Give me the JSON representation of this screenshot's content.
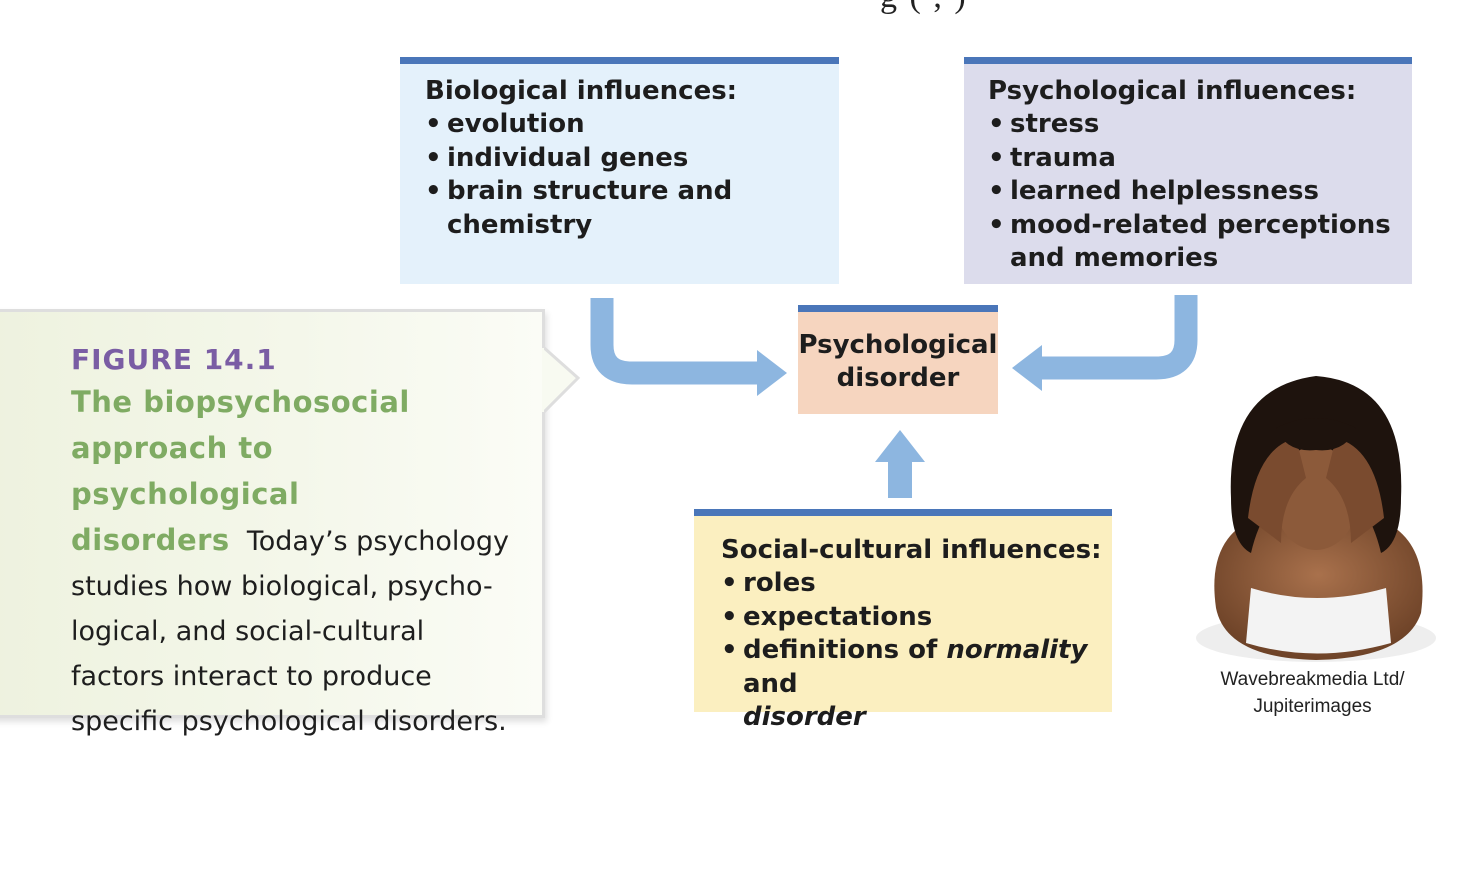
{
  "top_fragment": "g   (        ,     )",
  "biological": {
    "title": "Biological influences:",
    "items": [
      "evolution",
      "individual genes",
      "brain structure and chemistry"
    ]
  },
  "psychological": {
    "title": "Psychological influences:",
    "items": [
      "stress",
      "trauma",
      "learned helplessness",
      "mood-related perceptions and memories"
    ]
  },
  "center": {
    "line1": "Psychological",
    "line2": "disorder"
  },
  "social": {
    "title": "Social-cultural influences:",
    "items": [
      "roles",
      "expectations"
    ],
    "last_item": {
      "pre": "definitions of ",
      "italic1": "normality",
      "mid": " and",
      "italic2": "disorder"
    }
  },
  "figure": {
    "label": "FIGURE 14.1",
    "title": "The biopsychosocial approach to psychological disorders",
    "body": "Today’s psychology studies how biological, psycho-logical, and social-cultural factors interact to produce specific psychological disorders."
  },
  "photo_credit": {
    "line1": "Wavebreakmedia Ltd/",
    "line2": "Jupiterimages"
  },
  "colors": {
    "bar": "#4a76b9",
    "arrow": "#8db6e0",
    "bio_bg": "#e4f1fb",
    "psy_bg": "#dcdcec",
    "soc_bg": "#fbefc0",
    "center_bg": "#f6d5bf",
    "figure_label": "#7a5da4",
    "figure_title": "#7fab63"
  }
}
